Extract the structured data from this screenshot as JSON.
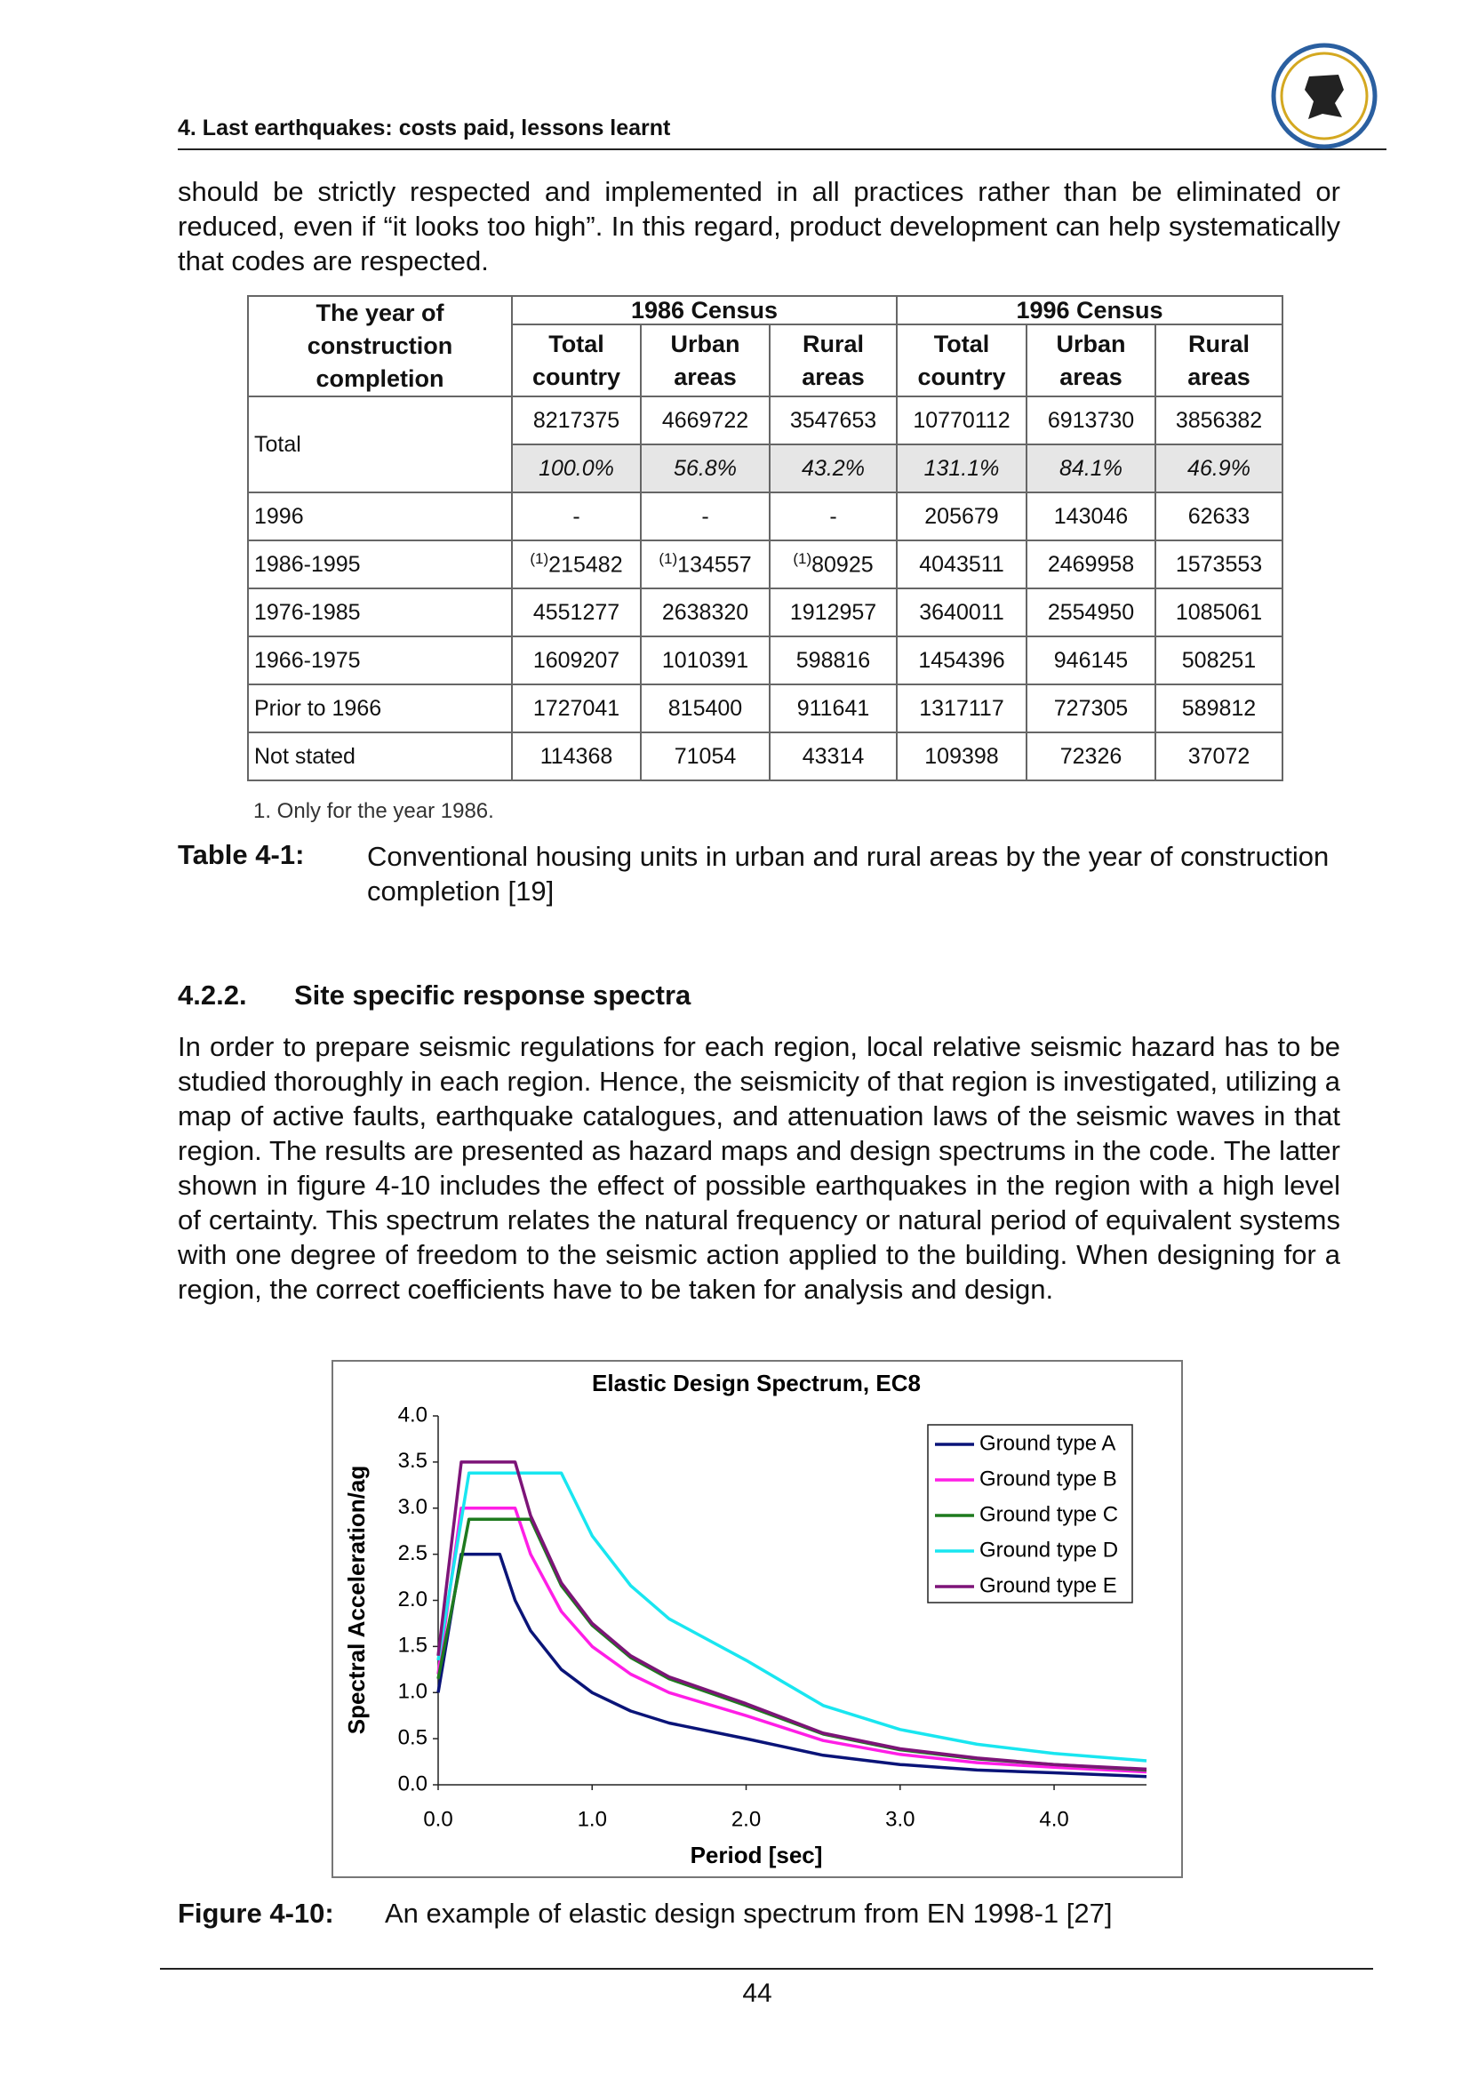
{
  "header": {
    "title": "4. Last earthquakes: costs paid, lessons learnt"
  },
  "paragraphs": [
    "should be strictly respected and implemented in all practices rather than be eliminated or reduced, even if “it looks too high”. In this regard, product development can help systematically that codes are respected.",
    "In order to prepare seismic regulations for each region, local relative seismic hazard has to be studied thoroughly in each region. Hence, the seismicity of that region is investigated, utilizing a map of active faults, earthquake catalogues, and attenuation laws of the seismic waves in that region. The results are presented as hazard maps and design spectrums in the code. The latter shown in figure 4-10 includes the effect of possible earthquakes in the region with a high level of certainty. This spectrum relates the natural frequency or natural period of equivalent systems with one degree of freedom to the seismic action applied to the building. When designing for a region, the correct coefficients have to be taken for analysis and design."
  ],
  "table": {
    "header": {
      "first": "The year of construction completion",
      "groups": [
        "1986 Census",
        "1996 Census"
      ],
      "columns": [
        "Total country",
        "Urban areas",
        "Rural areas",
        "Total country",
        "Urban areas",
        "Rural areas"
      ]
    },
    "rows": [
      {
        "label": "Total",
        "cells": [
          "8217375",
          "4669722",
          "3547653",
          "10770112",
          "6913730",
          "3856382"
        ],
        "shares": [
          "100.0%",
          "56.8%",
          "43.2%",
          "131.1%",
          "84.1%",
          "46.9%"
        ]
      },
      {
        "label": "1996",
        "cells": [
          "-",
          "-",
          "-",
          "205679",
          "143046",
          "62633"
        ]
      },
      {
        "label": "1986-1995",
        "cells": [
          {
            "note": "(1)",
            "text": "215482"
          },
          {
            "note": "(1)",
            "text": "134557"
          },
          {
            "note": "(1)",
            "text": "80925"
          },
          "4043511",
          "2469958",
          "1573553"
        ]
      },
      {
        "label": "1976-1985",
        "cells": [
          "4551277",
          "2638320",
          "1912957",
          "3640011",
          "2554950",
          "1085061"
        ]
      },
      {
        "label": "1966-1975",
        "cells": [
          "1609207",
          "1010391",
          "598816",
          "1454396",
          "946145",
          "508251"
        ]
      },
      {
        "label": "Prior to 1966",
        "cells": [
          "1727041",
          "815400",
          "911641",
          "1317117",
          "727305",
          "589812"
        ]
      },
      {
        "label": "Not stated",
        "cells": [
          "114368",
          "71054",
          "43314",
          "109398",
          "72326",
          "37072"
        ]
      }
    ],
    "footnote": "1. Only for the year 1986.",
    "caption": {
      "label": "Table 4-1:",
      "text": "Conventional housing units in urban and rural areas by the year of construction completion [19]"
    }
  },
  "section": {
    "number": "4.2.2.",
    "title": "Site specific response spectra"
  },
  "chart_data": {
    "type": "line",
    "title": "Elastic Design Spectrum, EC8",
    "x_label": "Period [sec]",
    "y_label": "Spectral Acceleration/ag",
    "x": [
      0,
      0.15,
      0.2,
      0.4,
      0.5,
      0.6,
      0.8,
      1.0,
      1.25,
      1.5,
      2.0,
      2.5,
      3.0,
      3.5,
      4.0,
      4.6
    ],
    "series": [
      {
        "name": "Ground type A",
        "color": "#0a1478",
        "values": [
          1.0,
          2.5,
          2.5,
          2.5,
          2.0,
          1.67,
          1.25,
          1.0,
          0.8,
          0.67,
          0.5,
          0.32,
          0.22,
          0.16,
          0.13,
          0.09
        ]
      },
      {
        "name": "Ground type B",
        "color": "#ff1ee6",
        "values": [
          1.2,
          3.0,
          3.0,
          3.0,
          3.0,
          2.5,
          1.88,
          1.5,
          1.2,
          1.0,
          0.75,
          0.48,
          0.33,
          0.24,
          0.19,
          0.14
        ]
      },
      {
        "name": "Ground type C",
        "color": "#1e7a1e",
        "values": [
          1.15,
          2.44,
          2.88,
          2.88,
          2.88,
          2.88,
          2.16,
          1.73,
          1.38,
          1.15,
          0.86,
          0.55,
          0.38,
          0.28,
          0.22,
          0.16
        ]
      },
      {
        "name": "Ground type D",
        "color": "#19e6f0",
        "values": [
          1.35,
          2.87,
          3.38,
          3.38,
          3.38,
          3.38,
          3.38,
          2.7,
          2.16,
          1.8,
          1.35,
          0.86,
          0.6,
          0.44,
          0.34,
          0.26
        ]
      },
      {
        "name": "Ground type E",
        "color": "#7d1478",
        "values": [
          1.4,
          3.5,
          3.5,
          3.5,
          3.5,
          2.92,
          2.19,
          1.75,
          1.4,
          1.17,
          0.88,
          0.56,
          0.39,
          0.29,
          0.22,
          0.17
        ]
      }
    ],
    "xlim": [
      0,
      4.6
    ],
    "ylim": [
      0,
      4
    ],
    "xticks": [
      {
        "value": 0,
        "label": "0.0"
      },
      {
        "value": 1,
        "label": "1.0"
      },
      {
        "value": 2,
        "label": "2.0"
      },
      {
        "value": 3,
        "label": "3.0"
      },
      {
        "value": 4,
        "label": "4.0"
      }
    ],
    "yticks": [
      {
        "value": 0,
        "label": "0.0"
      },
      0.5,
      {
        "value": 1,
        "label": "1.0"
      },
      1.5,
      {
        "value": 2,
        "label": "2.0"
      },
      2.5,
      {
        "value": 3,
        "label": "3.0"
      },
      3.5,
      {
        "value": 4,
        "label": "4.0"
      }
    ],
    "grid": false,
    "legend": "upper right"
  },
  "figure_caption": {
    "label": "Figure 4-10:",
    "text": "An example of elastic design spectrum from EN 1998-1 [27]"
  },
  "page_number": "44"
}
